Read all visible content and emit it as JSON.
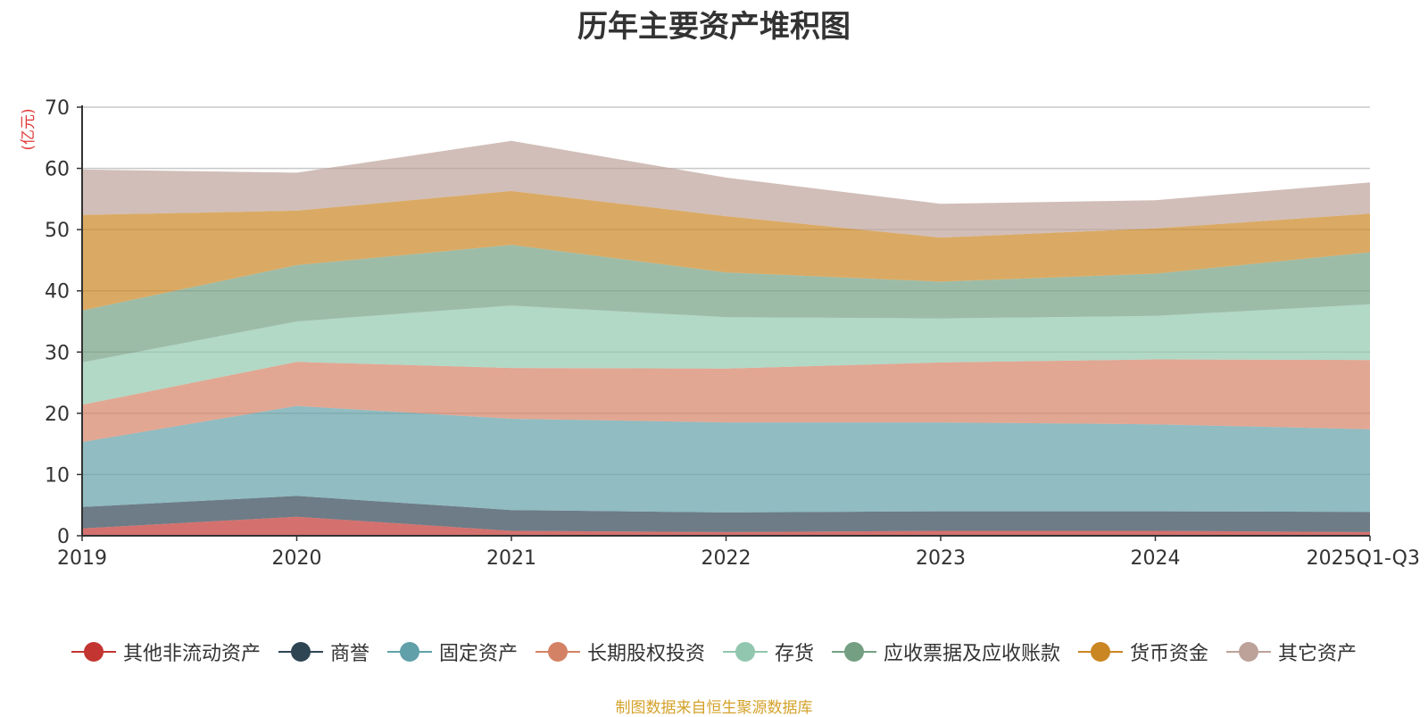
{
  "chart_data": {
    "type": "area",
    "stacked": true,
    "title": "历年主要资产堆积图",
    "ylabel": "(亿元)",
    "xlabel": "",
    "ylim": [
      0,
      70
    ],
    "yticks": [
      0,
      10,
      20,
      30,
      40,
      50,
      60,
      70
    ],
    "categories": [
      "2019",
      "2020",
      "2021",
      "2022",
      "2023",
      "2024",
      "2025Q1-Q3"
    ],
    "legend_position": "bottom",
    "series": [
      {
        "name": "其他非流动资产",
        "color": "#c23531",
        "values": [
          1.2,
          3.1,
          0.8,
          0.6,
          0.8,
          0.8,
          0.6
        ]
      },
      {
        "name": "商誉",
        "color": "#2f4554",
        "values": [
          3.5,
          3.4,
          3.4,
          3.2,
          3.2,
          3.2,
          3.3
        ]
      },
      {
        "name": "固定资产",
        "color": "#61a0a8",
        "values": [
          10.6,
          14.7,
          14.9,
          14.7,
          14.5,
          14.2,
          13.5
        ]
      },
      {
        "name": "长期股权投资",
        "color": "#d48265",
        "values": [
          6.1,
          7.2,
          8.3,
          8.8,
          9.8,
          10.6,
          11.3
        ]
      },
      {
        "name": "存货",
        "color": "#91c7ae",
        "values": [
          6.9,
          6.6,
          10.2,
          8.4,
          7.2,
          7.1,
          9.1
        ]
      },
      {
        "name": "应收票据及应收账款",
        "color": "#749f83",
        "values": [
          8.5,
          9.2,
          9.9,
          7.3,
          6.0,
          6.9,
          8.5
        ]
      },
      {
        "name": "货币资金",
        "color": "#ca8622",
        "values": [
          15.6,
          8.9,
          8.8,
          9.2,
          7.2,
          7.4,
          6.3
        ]
      },
      {
        "name": "其它资产",
        "color": "#bda29a",
        "values": [
          7.4,
          6.2,
          8.2,
          6.3,
          5.5,
          4.6,
          5.1
        ]
      }
    ]
  },
  "source_note": "制图数据来自恒生聚源数据库"
}
